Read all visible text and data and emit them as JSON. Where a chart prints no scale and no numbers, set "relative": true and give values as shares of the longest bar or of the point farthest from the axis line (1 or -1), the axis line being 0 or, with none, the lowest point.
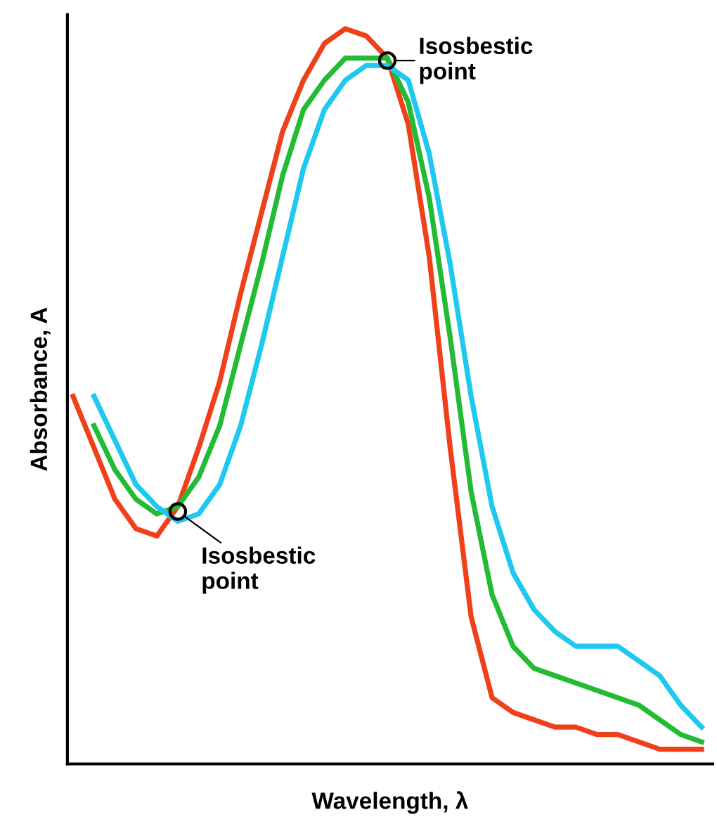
{
  "chart_data": {
    "type": "line",
    "relative": true,
    "xlabel": "Wavelength, λ",
    "ylabel": "Absorbance, A",
    "legend": false,
    "line_style": "solid",
    "marker": "none",
    "categories": [
      null,
      null,
      null,
      null,
      null,
      null,
      null,
      null,
      null,
      null,
      null,
      null,
      null,
      null,
      null,
      null,
      null,
      null,
      null,
      null,
      null,
      null,
      null,
      null,
      null,
      null,
      null,
      null,
      null,
      null,
      null
    ],
    "series": [
      {
        "color": "#f0401a",
        "values": [
          0.5,
          0.43,
          0.36,
          0.32,
          0.31,
          0.35,
          0.43,
          0.52,
          0.64,
          0.75,
          0.86,
          0.93,
          0.98,
          1.0,
          0.99,
          0.96,
          0.87,
          0.69,
          0.43,
          0.2,
          0.09,
          0.07,
          0.06,
          0.05,
          0.05,
          0.04,
          0.04,
          0.03,
          0.02,
          0.02,
          0.02
        ]
      },
      {
        "color": "#22bb33",
        "values": [
          null,
          0.46,
          0.4,
          0.36,
          0.34,
          0.35,
          0.39,
          0.46,
          0.57,
          0.68,
          0.8,
          0.89,
          0.93,
          0.96,
          0.96,
          0.96,
          0.9,
          0.77,
          0.58,
          0.37,
          0.23,
          0.16,
          0.13,
          0.12,
          0.11,
          0.1,
          0.09,
          0.08,
          0.06,
          0.04,
          0.03
        ]
      },
      {
        "color": "#1ec8f0",
        "values": [
          null,
          0.5,
          0.44,
          0.38,
          0.35,
          0.33,
          0.34,
          0.38,
          0.46,
          0.57,
          0.69,
          0.81,
          0.89,
          0.93,
          0.95,
          0.95,
          0.93,
          0.83,
          0.68,
          0.5,
          0.35,
          0.26,
          0.21,
          0.18,
          0.16,
          0.16,
          0.16,
          0.14,
          0.12,
          0.08,
          0.05
        ]
      }
    ],
    "annotations": [
      "Isosbestic\npoint",
      "Isosbestic\npoint"
    ]
  }
}
